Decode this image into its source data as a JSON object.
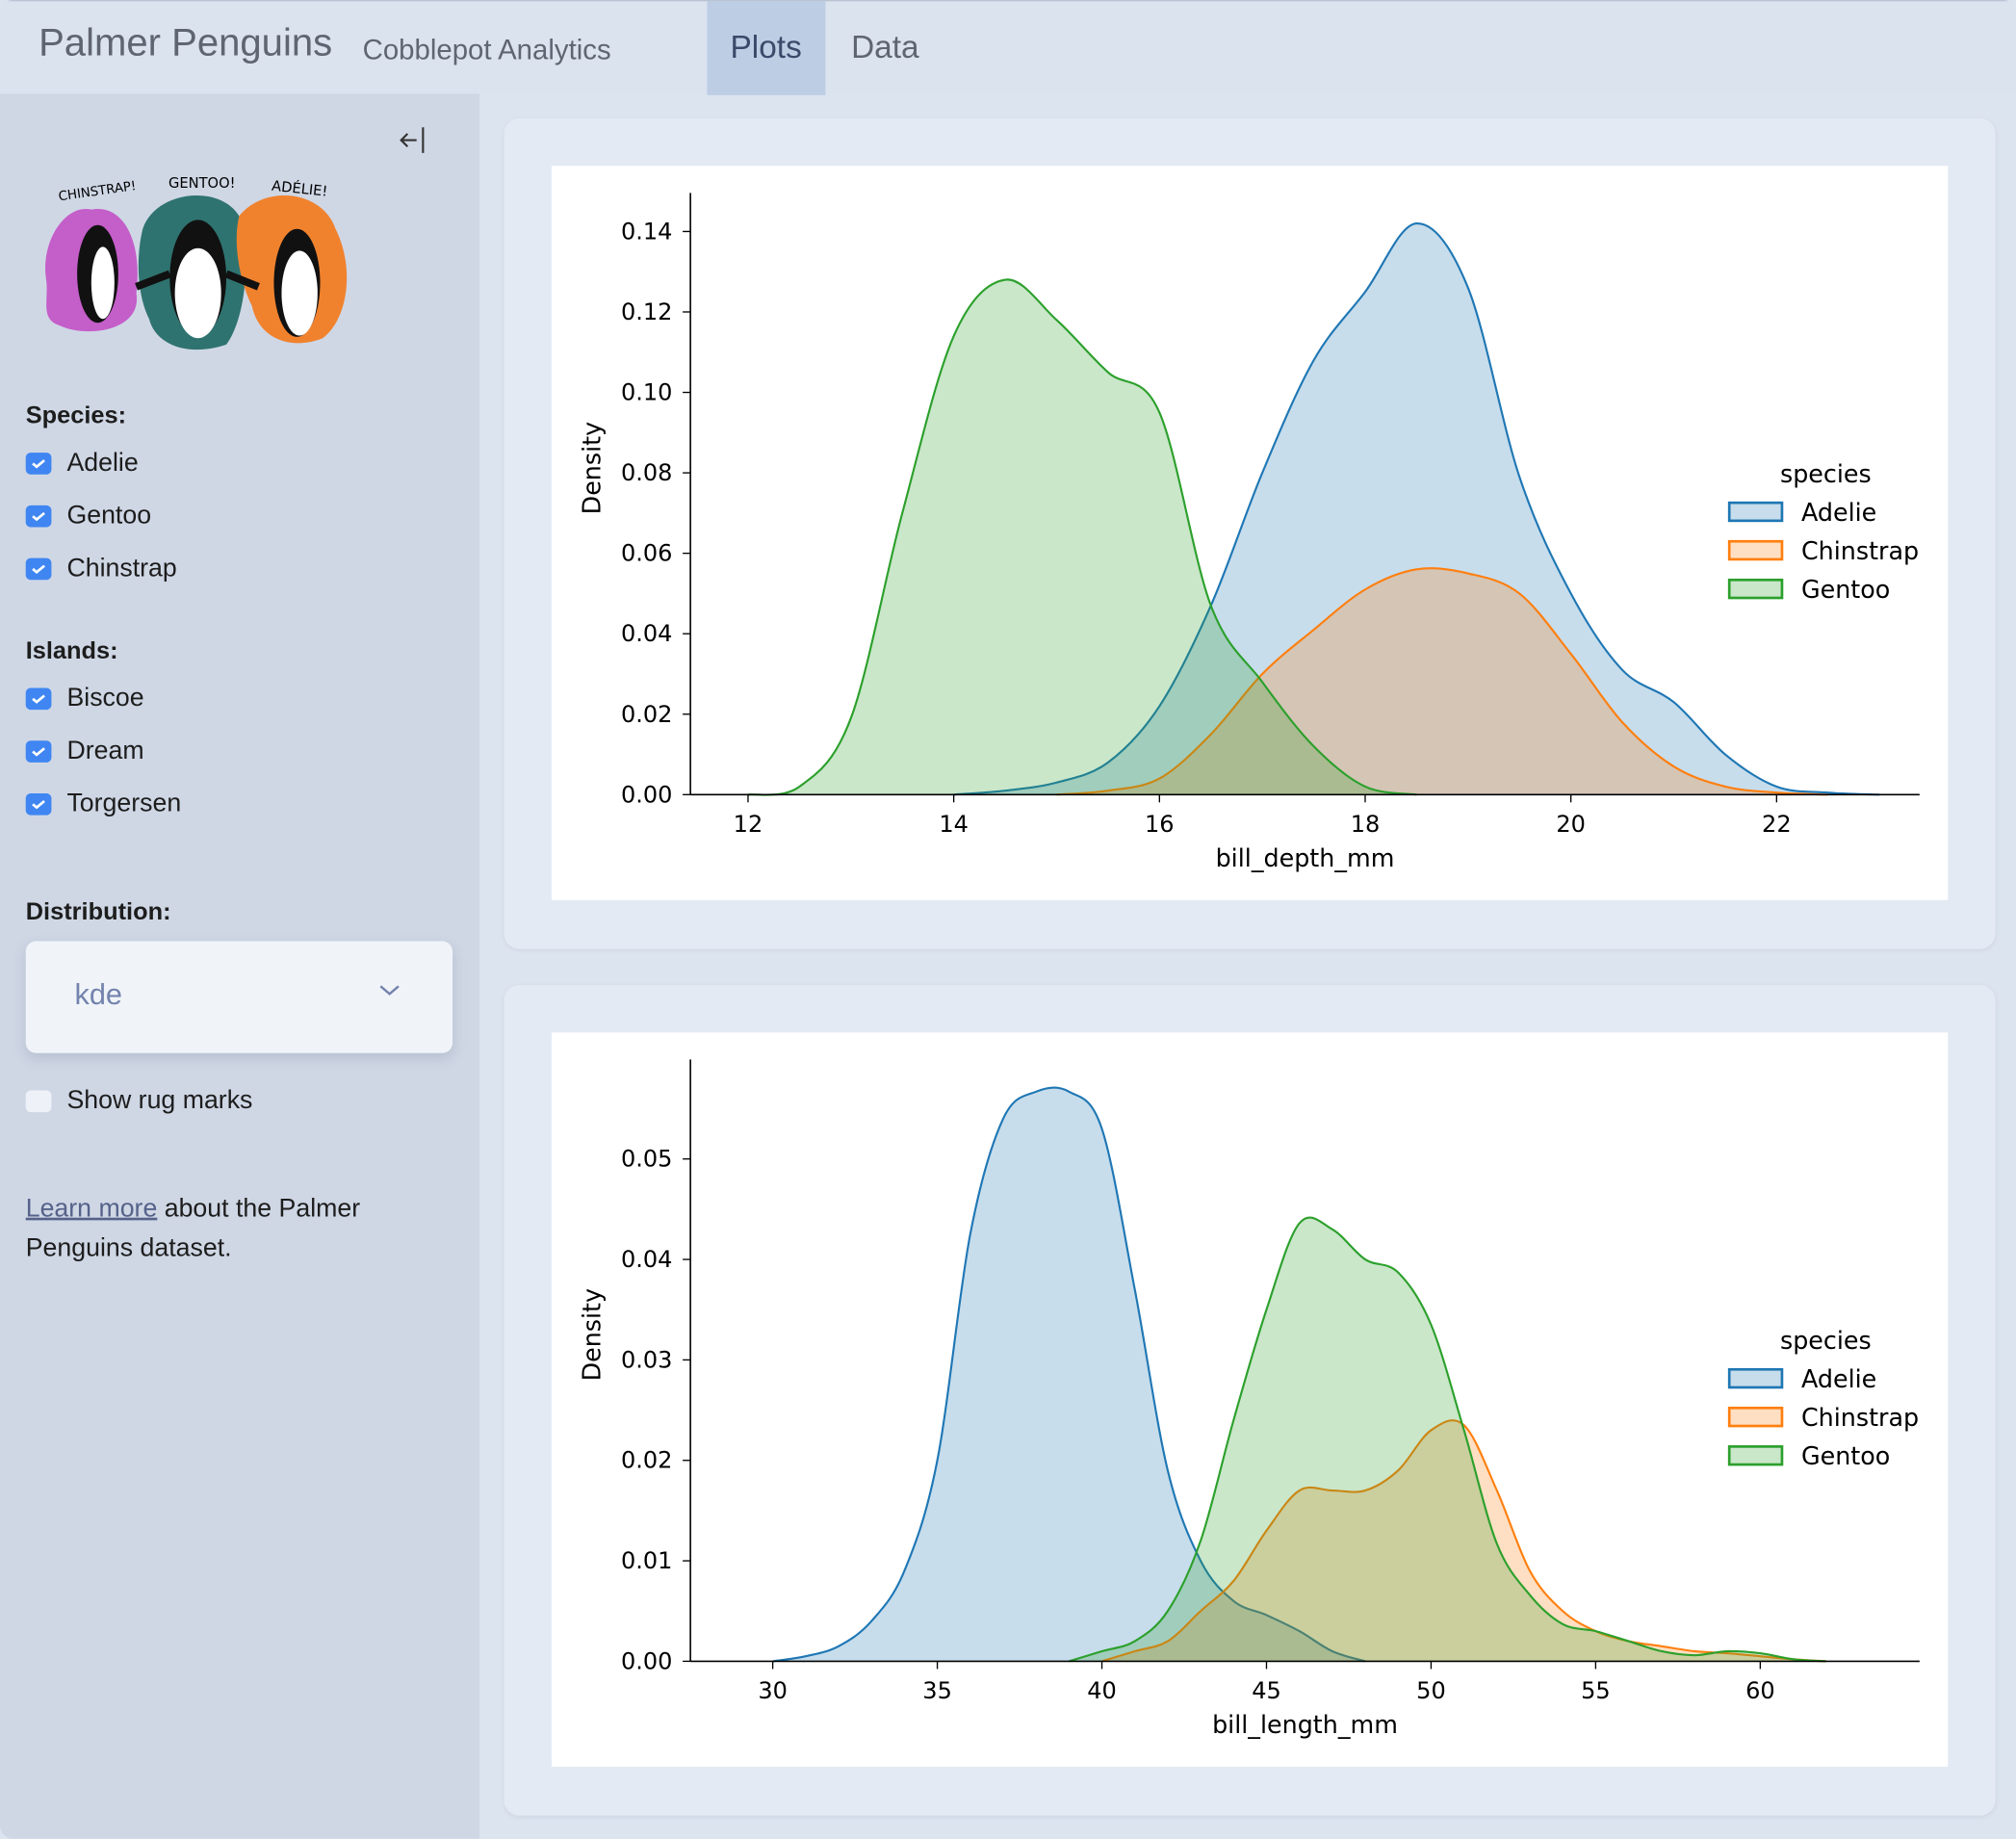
{
  "header": {
    "title": "Palmer Penguins",
    "subtitle": "Cobblepot Analytics",
    "tabs": [
      {
        "label": "Plots",
        "active": true
      },
      {
        "label": "Data",
        "active": false
      }
    ]
  },
  "sidebar": {
    "collapse_icon": "arrow-left-bar-icon",
    "logo_text": [
      "CHINSTRAP!",
      "GENTOO!",
      "ADÉLIE!"
    ],
    "species_label": "Species:",
    "species": [
      {
        "label": "Adelie",
        "checked": true
      },
      {
        "label": "Gentoo",
        "checked": true
      },
      {
        "label": "Chinstrap",
        "checked": true
      }
    ],
    "islands_label": "Islands:",
    "islands": [
      {
        "label": "Biscoe",
        "checked": true
      },
      {
        "label": "Dream",
        "checked": true
      },
      {
        "label": "Torgersen",
        "checked": true
      }
    ],
    "distribution_label": "Distribution:",
    "distribution_value": "kde",
    "rug": {
      "label": "Show rug marks",
      "checked": false
    },
    "learn_link": "Learn more",
    "learn_text": " about the Palmer Penguins dataset."
  },
  "colors": {
    "Adelie": "#1f77b4",
    "Chinstrap": "#ff7f0e",
    "Gentoo": "#2ca02c",
    "checkbox": "#3f86f2"
  },
  "chart_data": [
    {
      "type": "area",
      "xlabel": "bill_depth_mm",
      "ylabel": "Density",
      "xlim": [
        11.44,
        23.39
      ],
      "ylim": [
        0,
        0.1496
      ],
      "xticks": [
        12,
        14,
        16,
        18,
        20,
        22
      ],
      "yticks": [
        "0.00",
        "0.02",
        "0.04",
        "0.06",
        "0.08",
        "0.10",
        "0.12",
        "0.14"
      ],
      "legend": {
        "title": "species",
        "placement": "right",
        "entries": [
          "Adelie",
          "Chinstrap",
          "Gentoo"
        ]
      },
      "grid": false,
      "series": [
        {
          "name": "Adelie",
          "x": [
            14,
            14.5,
            15,
            15.5,
            16,
            16.5,
            17,
            17.5,
            18,
            18.5,
            19,
            19.5,
            20,
            20.5,
            21,
            21.5,
            22,
            22.5,
            23
          ],
          "y": [
            0,
            0.001,
            0.003,
            0.008,
            0.022,
            0.047,
            0.08,
            0.108,
            0.125,
            0.142,
            0.126,
            0.079,
            0.05,
            0.031,
            0.023,
            0.01,
            0.002,
            0.0005,
            0
          ]
        },
        {
          "name": "Chinstrap",
          "x": [
            15,
            15.5,
            16,
            16.5,
            17,
            17.5,
            18,
            18.5,
            19,
            19.5,
            20,
            20.5,
            21,
            21.5,
            22,
            22.5
          ],
          "y": [
            0,
            0.001,
            0.004,
            0.015,
            0.03,
            0.041,
            0.051,
            0.056,
            0.055,
            0.05,
            0.035,
            0.018,
            0.007,
            0.002,
            0.0005,
            0
          ]
        },
        {
          "name": "Gentoo",
          "x": [
            12,
            12.5,
            13,
            13.5,
            14,
            14.5,
            15,
            15.5,
            16,
            16.5,
            17,
            17.5,
            18,
            18.5
          ],
          "y": [
            0,
            0.002,
            0.019,
            0.07,
            0.114,
            0.128,
            0.118,
            0.105,
            0.095,
            0.047,
            0.028,
            0.012,
            0.002,
            0
          ]
        }
      ]
    },
    {
      "type": "area",
      "xlabel": "bill_length_mm",
      "ylabel": "Density",
      "xlim": [
        27.5,
        64.84
      ],
      "ylim": [
        0,
        0.0599
      ],
      "xticks": [
        30,
        35,
        40,
        45,
        50,
        55,
        60
      ],
      "yticks": [
        "0.00",
        "0.01",
        "0.02",
        "0.03",
        "0.04",
        "0.05"
      ],
      "legend": {
        "title": "species",
        "placement": "right",
        "entries": [
          "Adelie",
          "Chinstrap",
          "Gentoo"
        ]
      },
      "grid": false,
      "series": [
        {
          "name": "Adelie",
          "x": [
            30,
            31,
            32,
            33,
            34,
            35,
            36,
            37,
            38,
            39,
            40,
            41,
            42,
            43,
            44,
            45,
            46,
            47,
            48
          ],
          "y": [
            0,
            0.0005,
            0.0015,
            0.004,
            0.009,
            0.02,
            0.0425,
            0.054,
            0.0567,
            0.0567,
            0.053,
            0.037,
            0.019,
            0.01,
            0.006,
            0.0046,
            0.003,
            0.001,
            0
          ]
        },
        {
          "name": "Chinstrap",
          "x": [
            40,
            41,
            42,
            43,
            44,
            45,
            46,
            47,
            48,
            49,
            50,
            51,
            52,
            53,
            54,
            55,
            56,
            57,
            58,
            59,
            60,
            61,
            62
          ],
          "y": [
            0,
            0.001,
            0.002,
            0.005,
            0.008,
            0.013,
            0.017,
            0.017,
            0.017,
            0.019,
            0.023,
            0.0235,
            0.017,
            0.009,
            0.005,
            0.003,
            0.002,
            0.0015,
            0.001,
            0.0008,
            0.0005,
            0.0002,
            0
          ]
        },
        {
          "name": "Gentoo",
          "x": [
            39,
            40,
            41,
            42,
            43,
            44,
            45,
            46,
            47,
            48,
            49,
            50,
            51,
            52,
            53,
            54,
            55,
            56,
            57,
            58,
            59,
            60,
            61,
            62
          ],
          "y": [
            0,
            0.001,
            0.002,
            0.005,
            0.012,
            0.024,
            0.035,
            0.0436,
            0.043,
            0.04,
            0.0387,
            0.0335,
            0.023,
            0.0117,
            0.0066,
            0.0037,
            0.003,
            0.002,
            0.001,
            0.0006,
            0.001,
            0.0008,
            0.0002,
            0
          ]
        }
      ]
    }
  ]
}
